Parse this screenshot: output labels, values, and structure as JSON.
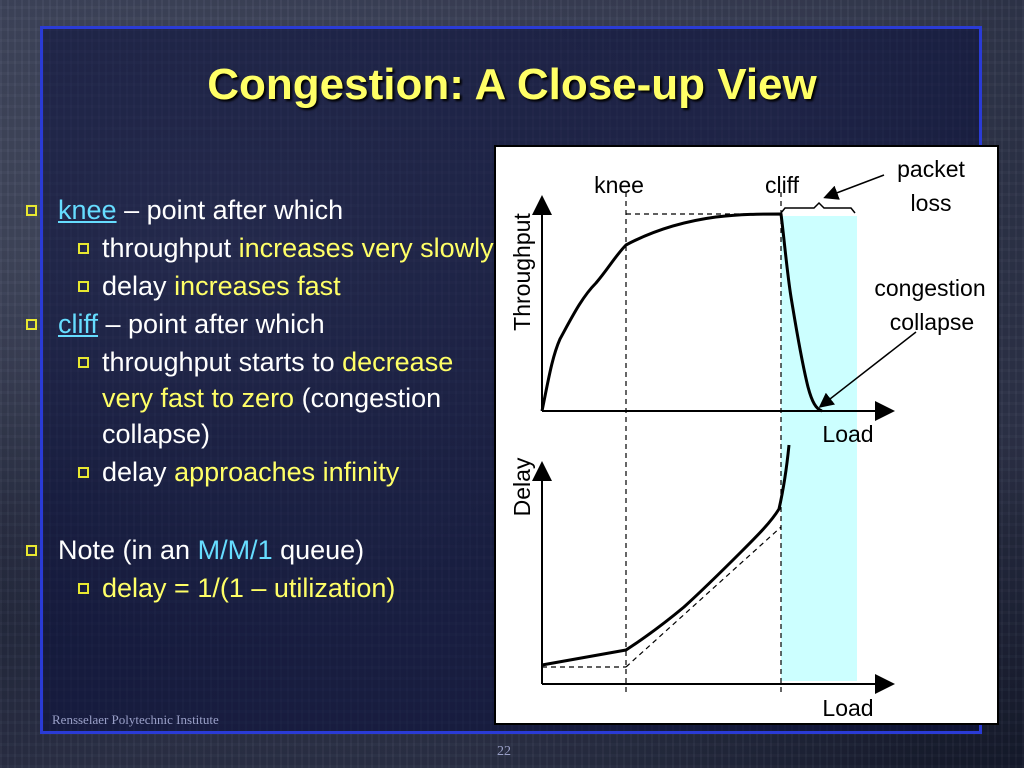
{
  "slide": {
    "title": "Congestion: A Close-up View",
    "footer": "Rensselaer Polytechnic Institute",
    "page_number": "22"
  },
  "bullets": {
    "knee": {
      "term": "knee",
      "rest": " – point after which",
      "sub1": {
        "plain": "throughput ",
        "highlight": "increases very slowly"
      },
      "sub2": {
        "plain": "delay ",
        "highlight": "increases fast"
      }
    },
    "cliff": {
      "term": "cliff",
      "rest": " – point after which",
      "sub1": {
        "plain": "throughput starts to ",
        "highlight": "decrease very fast to zero",
        "after": " (congestion collapse)"
      },
      "sub2": {
        "plain": "delay ",
        "highlight": "approaches infinity"
      }
    },
    "note": {
      "prefix": "Note (in an ",
      "model": "M/M/1",
      "suffix": " queue)",
      "sub": "delay = 1/(1 – utilization)"
    }
  },
  "diagram": {
    "labels": {
      "knee": "knee",
      "cliff": "cliff",
      "packet_loss": [
        "packet",
        "loss"
      ],
      "congestion_collapse": [
        "congestion",
        "collapse"
      ],
      "top_y": "Throughput",
      "top_x": "Load",
      "bottom_y": "Delay",
      "bottom_x": "Load"
    },
    "colors": {
      "collapse_region": "#ccffff",
      "curve": "#000000"
    }
  }
}
